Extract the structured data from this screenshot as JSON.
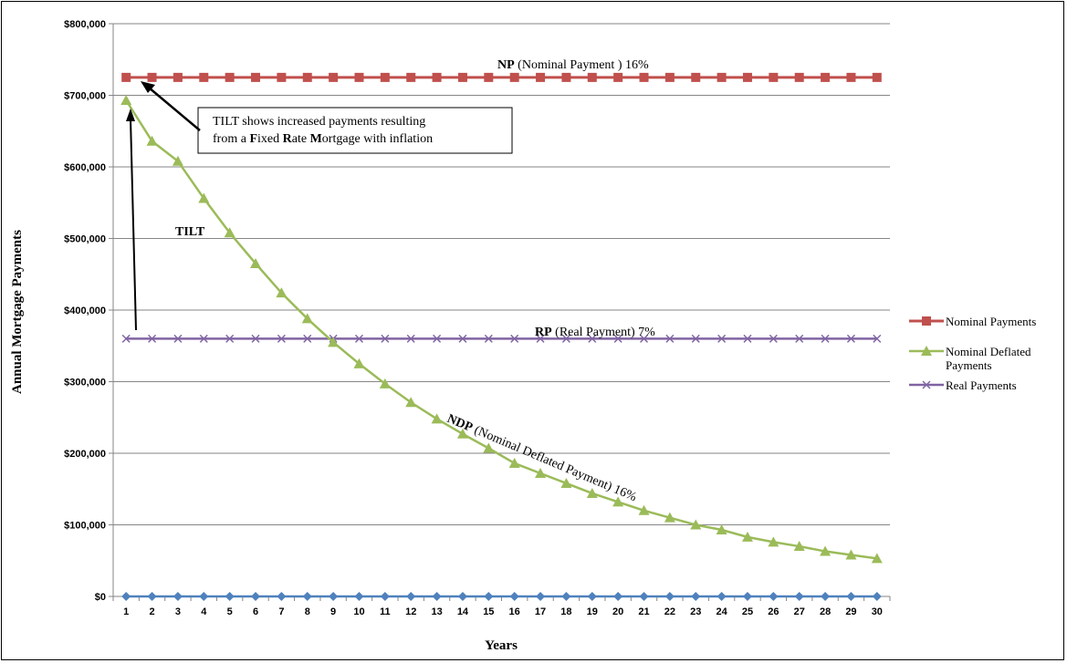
{
  "chart_data": {
    "type": "line",
    "xlabel": "Years",
    "ylabel": "Annual Mortgage Payments",
    "x": [
      1,
      2,
      3,
      4,
      5,
      6,
      7,
      8,
      9,
      10,
      11,
      12,
      13,
      14,
      15,
      16,
      17,
      18,
      19,
      20,
      21,
      22,
      23,
      24,
      25,
      26,
      27,
      28,
      29,
      30
    ],
    "ylim": [
      0,
      800000
    ],
    "y_ticks": [
      0,
      100000,
      200000,
      300000,
      400000,
      500000,
      600000,
      700000,
      800000
    ],
    "y_tick_labels": [
      "$0",
      "$100,000",
      "$200,000",
      "$300,000",
      "$400,000",
      "$500,000",
      "$600,000",
      "$700,000",
      "$800,000"
    ],
    "grid": "horizontal",
    "legend_position": "right",
    "series": [
      {
        "name": "Nominal Payments",
        "color": "#C0504D",
        "marker": "square",
        "values": [
          725000,
          725000,
          725000,
          725000,
          725000,
          725000,
          725000,
          725000,
          725000,
          725000,
          725000,
          725000,
          725000,
          725000,
          725000,
          725000,
          725000,
          725000,
          725000,
          725000,
          725000,
          725000,
          725000,
          725000,
          725000,
          725000,
          725000,
          725000,
          725000,
          725000
        ]
      },
      {
        "name": "Nominal Deflated Payments",
        "color": "#9BBB59",
        "marker": "triangle",
        "values": [
          693000,
          636000,
          608000,
          556000,
          508000,
          465000,
          424000,
          388000,
          355000,
          325000,
          297000,
          271000,
          248000,
          227000,
          207000,
          186000,
          172000,
          158000,
          144000,
          132000,
          120000,
          110000,
          100000,
          93000,
          83000,
          76000,
          70000,
          63000,
          58000,
          53000
        ]
      },
      {
        "name": "Real Payments",
        "color": "#8064A2",
        "marker": "x",
        "values": [
          360000,
          360000,
          360000,
          360000,
          360000,
          360000,
          360000,
          360000,
          360000,
          360000,
          360000,
          360000,
          360000,
          360000,
          360000,
          360000,
          360000,
          360000,
          360000,
          360000,
          360000,
          360000,
          360000,
          360000,
          360000,
          360000,
          360000,
          360000,
          360000,
          360000
        ]
      },
      {
        "name": "",
        "color": "#4F81BD",
        "marker": "diamond",
        "values": [
          0,
          0,
          0,
          0,
          0,
          0,
          0,
          0,
          0,
          0,
          0,
          0,
          0,
          0,
          0,
          0,
          0,
          0,
          0,
          0,
          0,
          0,
          0,
          0,
          0,
          0,
          0,
          0,
          0,
          0
        ]
      }
    ],
    "annotations": {
      "np_bold": "NP",
      "np_rest": " (Nominal Payment )  16%",
      "rp_bold": "RP",
      "rp_rest": " (Real Payment)  7%",
      "tilt": "TILT",
      "ndp_bold": "NDP",
      "ndp_rest": " (Nominal Deflated Payment) 16%",
      "box_line1": "TILT shows increased payments resulting",
      "box_line2_parts": [
        "from a ",
        "F",
        "ixed ",
        "R",
        "ate ",
        "M",
        "ortgage with inflation"
      ]
    }
  },
  "colors": {
    "grid": "#868686",
    "axis": "#868686",
    "nominal": "#C0504D",
    "deflated": "#9BBB59",
    "real": "#8064A2",
    "zero": "#4F81BD"
  }
}
